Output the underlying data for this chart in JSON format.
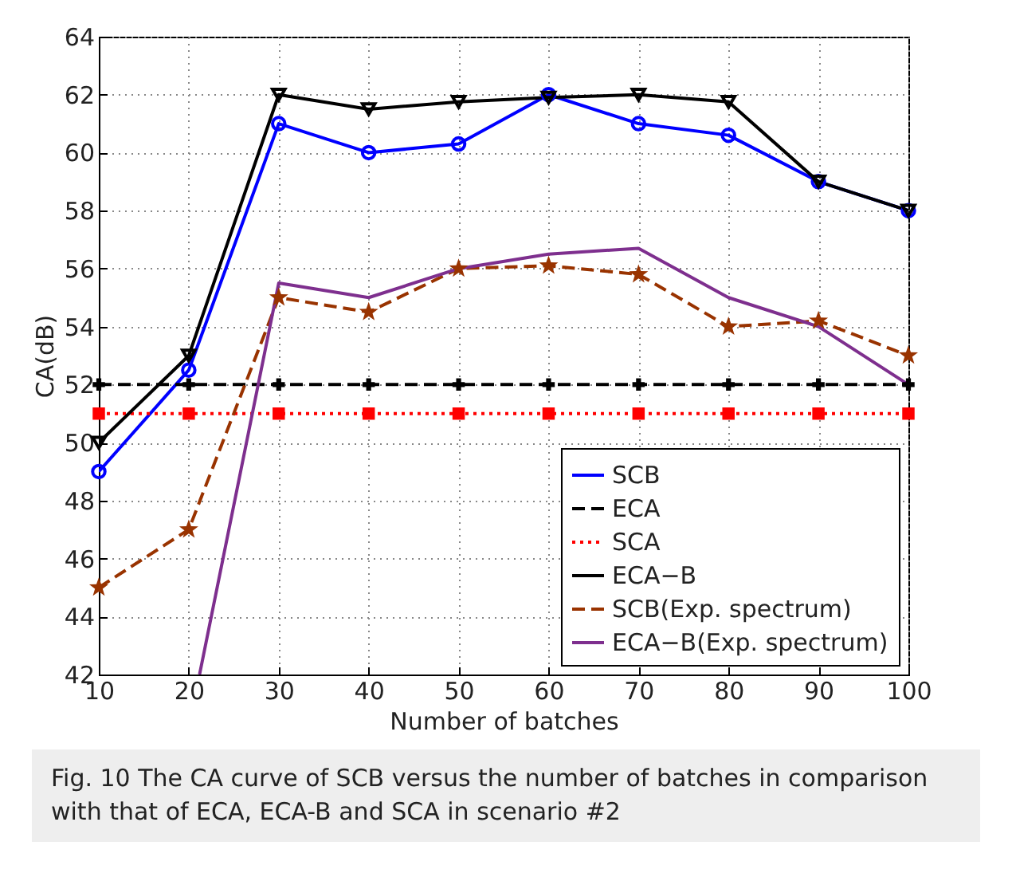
{
  "chart_data": {
    "type": "line",
    "xlabel": "Number of batches",
    "ylabel": "CA(dB)",
    "x": [
      10,
      20,
      30,
      40,
      50,
      60,
      70,
      80,
      90,
      100
    ],
    "xlim": [
      10,
      100
    ],
    "xticks": [
      10,
      20,
      30,
      40,
      50,
      60,
      70,
      80,
      90,
      100
    ],
    "ylim": [
      42,
      64
    ],
    "yticks": [
      42,
      44,
      46,
      48,
      50,
      52,
      54,
      56,
      58,
      60,
      62,
      64
    ],
    "grid": true,
    "legend": "bottom right",
    "series": [
      {
        "name": "SCB",
        "color": "#0000ff",
        "marker": "circle",
        "line_style": "solid",
        "values": [
          49,
          52.5,
          61,
          60,
          60.3,
          62,
          61,
          60.6,
          59,
          58
        ]
      },
      {
        "name": "ECA",
        "color": "#000000",
        "marker": "cross",
        "line_style": "dashed",
        "values": [
          52,
          52,
          52,
          52,
          52,
          52,
          52,
          52,
          52,
          52
        ]
      },
      {
        "name": "SCA",
        "color": "#ff0000",
        "marker": "square",
        "line_style": "dotted",
        "values": [
          51,
          51,
          51,
          51,
          51,
          51,
          51,
          51,
          51,
          51
        ]
      },
      {
        "name": "ECA−B",
        "color": "#000000",
        "marker": "triangle",
        "line_style": "solid",
        "values": [
          50,
          53,
          62,
          61.5,
          61.75,
          61.9,
          62,
          61.75,
          59,
          58
        ]
      },
      {
        "name": "SCB(Exp. spectrum)",
        "color": "#993300",
        "marker": "star",
        "line_style": "dashed",
        "values": [
          45,
          47,
          55,
          54.5,
          56,
          56.1,
          55.8,
          54,
          54.2,
          53
        ]
      },
      {
        "name": "ECA−B(Exp. spectrum)",
        "color": "#7e2f8e",
        "marker": "none",
        "line_style": "solid",
        "x": [
          21.2,
          30,
          40,
          50,
          60,
          70,
          80,
          90,
          100
        ],
        "values": [
          42,
          55.5,
          55,
          56,
          56.5,
          56.7,
          55,
          54,
          52
        ]
      }
    ],
    "annotations": [
      "Fig. 10 The CA curve of SCB versus the number of batches in comparison with that of ECA, ECA-B and SCA in scenario #2"
    ]
  }
}
